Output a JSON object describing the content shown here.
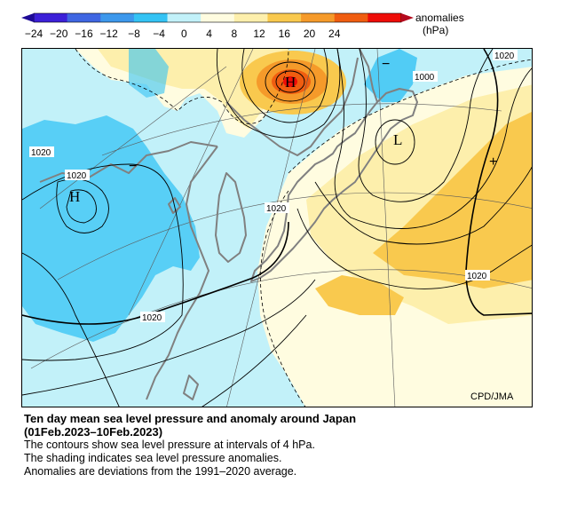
{
  "legend": {
    "title_line1": "anomalies",
    "title_line2": "(hPa)",
    "ticks": [
      "−24",
      "−20",
      "−16",
      "−12",
      "−8",
      "−4",
      "0",
      "4",
      "8",
      "12",
      "16",
      "20",
      "24"
    ],
    "bin_colors": [
      "#3c20d8",
      "#3f66e2",
      "#3d98ec",
      "#34c3f4",
      "#c2f1f9",
      "#fffce0",
      "#fdefac",
      "#f9c94e",
      "#f59a2a",
      "#f05d10",
      "#ee0d08"
    ],
    "low_arrow_color": "#1e0a96",
    "high_arrow_color": "#b40a1e"
  },
  "map": {
    "isobar_labels": [
      "1020",
      "1000",
      "1020",
      "1020",
      "1020",
      "1020",
      "1020"
    ],
    "pressure_center_labels": [
      "H",
      "H",
      "L"
    ],
    "anomaly_center_labels": [
      "−",
      "−",
      "+"
    ],
    "credit": "CPD/JMA"
  },
  "caption": {
    "title": "Ten day mean sea level pressure and anomaly around Japan",
    "period": "(01Feb.2023–10Feb.2023)",
    "line1": "The contours show sea level pressure at intervals of 4 hPa.",
    "line2": "The shading indicates sea level pressure anomalies.",
    "line3": "Anomalies are deviations from the 1991–2020 average."
  }
}
